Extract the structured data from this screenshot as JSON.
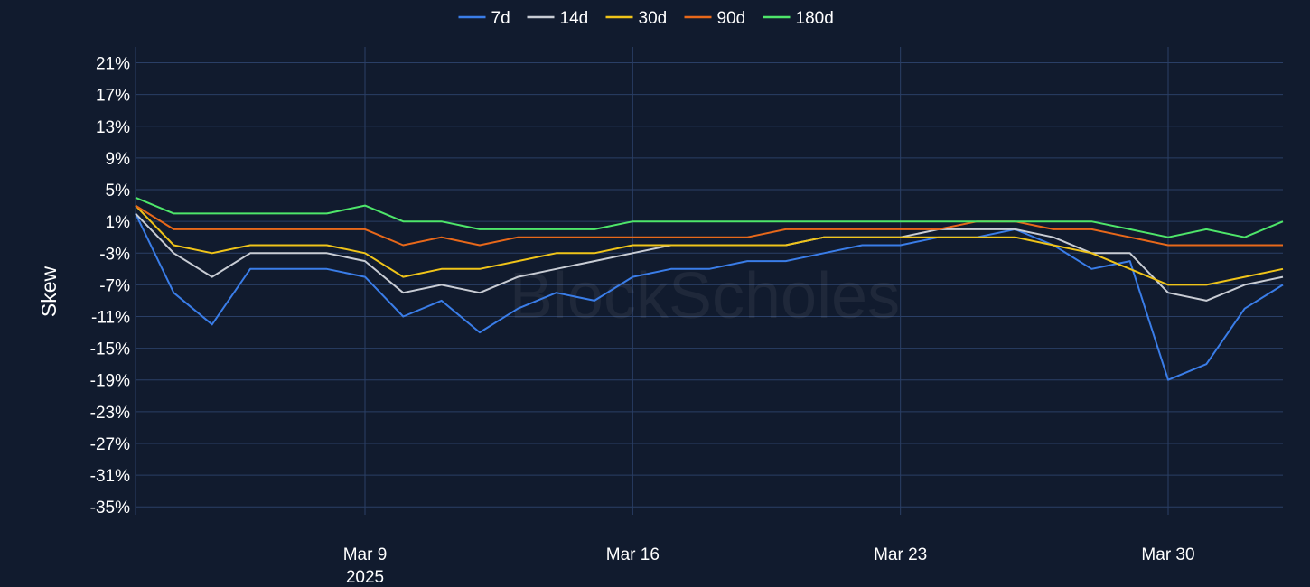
{
  "chart_data": {
    "type": "line",
    "ylabel": "Skew",
    "y_unit": "%",
    "ylim": [
      -36,
      23
    ],
    "y_ticks": [
      21,
      17,
      13,
      9,
      5,
      1,
      -3,
      -7,
      -11,
      -15,
      -19,
      -23,
      -27,
      -31,
      -35
    ],
    "y_tick_labels": [
      "21%",
      "17%",
      "13%",
      "9%",
      "5%",
      "1%",
      "-3%",
      "-7%",
      "-11%",
      "-15%",
      "-19%",
      "-23%",
      "-27%",
      "-31%",
      "-35%"
    ],
    "xlim": [
      "2025-03-03",
      "2025-04-02"
    ],
    "x_ticks": [
      {
        "date": "2025-03-09",
        "label": "Mar 9",
        "sublabel": "2025"
      },
      {
        "date": "2025-03-16",
        "label": "Mar 16",
        "sublabel": ""
      },
      {
        "date": "2025-03-23",
        "label": "Mar 23",
        "sublabel": ""
      },
      {
        "date": "2025-03-30",
        "label": "Mar 30",
        "sublabel": ""
      }
    ],
    "legend_position": "top-center",
    "grid": true,
    "watermark": "BlockScholes",
    "x": [
      "2025-03-03",
      "2025-03-04",
      "2025-03-05",
      "2025-03-06",
      "2025-03-07",
      "2025-03-08",
      "2025-03-09",
      "2025-03-10",
      "2025-03-11",
      "2025-03-12",
      "2025-03-13",
      "2025-03-14",
      "2025-03-15",
      "2025-03-16",
      "2025-03-17",
      "2025-03-18",
      "2025-03-19",
      "2025-03-20",
      "2025-03-21",
      "2025-03-22",
      "2025-03-23",
      "2025-03-24",
      "2025-03-25",
      "2025-03-26",
      "2025-03-27",
      "2025-03-28",
      "2025-03-29",
      "2025-03-30",
      "2025-03-31",
      "2025-04-01",
      "2025-04-02"
    ],
    "series": [
      {
        "name": "7d",
        "color": "#3a7de8",
        "values": [
          2,
          -8,
          -12,
          -5,
          -5,
          -5,
          -6,
          -11,
          -9,
          -13,
          -10,
          -8,
          -9,
          -6,
          -5,
          -5,
          -4,
          -4,
          -3,
          -2,
          -2,
          -1,
          -1,
          0,
          -2,
          -5,
          -4,
          -19,
          -17,
          -10,
          -7
        ]
      },
      {
        "name": "14d",
        "color": "#c8ccd4",
        "values": [
          2,
          -3,
          -6,
          -3,
          -3,
          -3,
          -4,
          -8,
          -7,
          -8,
          -6,
          -5,
          -4,
          -3,
          -2,
          -2,
          -2,
          -2,
          -1,
          -1,
          -1,
          0,
          0,
          0,
          -1,
          -3,
          -3,
          -8,
          -9,
          -7,
          -6
        ]
      },
      {
        "name": "30d",
        "color": "#f0c419",
        "values": [
          3,
          -2,
          -3,
          -2,
          -2,
          -2,
          -3,
          -6,
          -5,
          -5,
          -4,
          -3,
          -3,
          -2,
          -2,
          -2,
          -2,
          -2,
          -1,
          -1,
          -1,
          -1,
          -1,
          -1,
          -2,
          -3,
          -5,
          -7,
          -7,
          -6,
          -5
        ]
      },
      {
        "name": "90d",
        "color": "#e8681a",
        "values": [
          3,
          0,
          0,
          0,
          0,
          0,
          0,
          -2,
          -1,
          -2,
          -1,
          -1,
          -1,
          -1,
          -1,
          -1,
          -1,
          0,
          0,
          0,
          0,
          0,
          1,
          1,
          0,
          0,
          -1,
          -2,
          -2,
          -2,
          -2
        ]
      },
      {
        "name": "180d",
        "color": "#4ee66a",
        "values": [
          4,
          2,
          2,
          2,
          2,
          2,
          3,
          1,
          1,
          0,
          0,
          0,
          0,
          1,
          1,
          1,
          1,
          1,
          1,
          1,
          1,
          1,
          1,
          1,
          1,
          1,
          0,
          -1,
          0,
          -1,
          1
        ]
      }
    ]
  }
}
